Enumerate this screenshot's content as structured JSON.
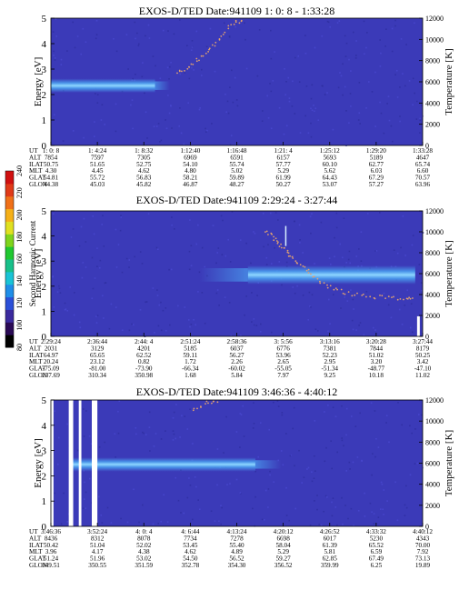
{
  "colorbar": {
    "label": "Second Harmonic Current",
    "ticks": [
      "80",
      "100",
      "120",
      "140",
      "160",
      "180",
      "200",
      "220",
      "240"
    ],
    "colors": [
      "#000000",
      "#2a0a55",
      "#3b2a9e",
      "#2b4fd8",
      "#1f8ee8",
      "#19c3d6",
      "#18c08a",
      "#20c830",
      "#7fd41c",
      "#e0e020",
      "#f5b018",
      "#f07018",
      "#e03a18",
      "#d01010"
    ]
  },
  "background_color": "#3b3ab8",
  "band_color": "#4aa0f0",
  "band_core_color": "#8fd8ff",
  "scatter_color": "#e0a070",
  "chart_data": [
    {
      "type": "heatmap",
      "title": "EXOS-D/TED   Date:941109   1: 0: 8 - 1:33:28",
      "ylabel": "Energy [eV]",
      "y2label": "Temperature [K]",
      "ylim": [
        0,
        5
      ],
      "y_ticks": [
        "0",
        "1",
        "2",
        "3",
        "4",
        "5"
      ],
      "y2lim": [
        0,
        12000
      ],
      "y2_ticks": [
        "0",
        "2000",
        "4000",
        "6000",
        "8000",
        "10000",
        "12000"
      ],
      "band": {
        "energy_center": 2.35,
        "energy_width": 0.55,
        "time_range": [
          0.0,
          0.28
        ],
        "fade_range": [
          0.28,
          0.32
        ]
      },
      "temperature_trace": [
        [
          0.34,
          2.8
        ],
        [
          0.37,
          3.05
        ],
        [
          0.4,
          3.4
        ],
        [
          0.43,
          3.8
        ],
        [
          0.46,
          4.3
        ],
        [
          0.49,
          4.8
        ],
        [
          0.52,
          4.95
        ]
      ],
      "ephemeris": {
        "labels": [
          "UT",
          "ALT",
          "ILAT",
          "MLT",
          "GLAT",
          "GLON"
        ],
        "columns": [
          [
            "1: 0: 8",
            "7854",
            "50.75",
            "4.30",
            "54.81",
            "44.38"
          ],
          [
            "1: 4:24",
            "7597",
            "51.65",
            "4.45",
            "55.72",
            "45.03"
          ],
          [
            "1: 8:32",
            "7305",
            "52.75",
            "4.62",
            "56.83",
            "45.82"
          ],
          [
            "1:12:40",
            "6969",
            "54.10",
            "4.80",
            "58.21",
            "46.87"
          ],
          [
            "1:16:48",
            "6591",
            "55.74",
            "5.02",
            "59.89",
            "48.27"
          ],
          [
            "1:21: 4",
            "6157",
            "57.77",
            "5.29",
            "61.99",
            "50.27"
          ],
          [
            "1:25:12",
            "5693",
            "60.10",
            "5.62",
            "64.43",
            "53.07"
          ],
          [
            "1:29:20",
            "5189",
            "62.77",
            "6.03",
            "67.29",
            "57.27"
          ],
          [
            "1:33:28",
            "4647",
            "65.74",
            "6.60",
            "70.57",
            "63.96"
          ]
        ]
      }
    },
    {
      "type": "heatmap",
      "title": "EXOS-D/TED   Date:941109   2:29:24 - 3:27:44",
      "ylabel": "Energy [eV]",
      "y2label": "Temperature [K]",
      "ylim": [
        0,
        5
      ],
      "y_ticks": [
        "0",
        "1",
        "2",
        "3",
        "4",
        "5"
      ],
      "y2lim": [
        0,
        12000
      ],
      "y2_ticks": [
        "0",
        "2000",
        "4000",
        "6000",
        "8000",
        "10000",
        "12000"
      ],
      "band": {
        "energy_center": 2.45,
        "energy_width": 0.75,
        "time_range": [
          0.53,
          0.98
        ],
        "fade_range": [
          0.4,
          0.53
        ]
      },
      "temperature_trace": [
        [
          0.58,
          4.2
        ],
        [
          0.6,
          3.9
        ],
        [
          0.62,
          3.6
        ],
        [
          0.64,
          3.3
        ],
        [
          0.66,
          3.0
        ],
        [
          0.69,
          2.6
        ],
        [
          0.72,
          2.2
        ],
        [
          0.76,
          1.9
        ],
        [
          0.8,
          1.7
        ],
        [
          0.85,
          1.6
        ],
        [
          0.9,
          1.55
        ],
        [
          0.95,
          1.5
        ],
        [
          0.98,
          1.5
        ]
      ],
      "ephemeris": {
        "labels": [
          "UT",
          "ALT",
          "ILAT",
          "MLT",
          "GLAT",
          "GLON"
        ],
        "columns": [
          [
            "2:29:24",
            "2031",
            "64.97",
            "20.24",
            "-75.09",
            "237.69"
          ],
          [
            "2:36:44",
            "3129",
            "65.65",
            "23.12",
            "-81.00",
            "310.34"
          ],
          [
            "2:44: 4",
            "4201",
            "62.52",
            "0.82",
            "-73.90",
            "350.98"
          ],
          [
            "2:51:24",
            "5185",
            "59.11",
            "1.72",
            "-66.34",
            "1.68"
          ],
          [
            "2:58:36",
            "6037",
            "56.27",
            "2.26",
            "-60.02",
            "5.84"
          ],
          [
            "3: 5:56",
            "6776",
            "53.96",
            "2.65",
            "-55.05",
            "7.97"
          ],
          [
            "3:13:16",
            "7381",
            "52.23",
            "2.95",
            "-51.34",
            "9.25"
          ],
          [
            "3:20:28",
            "7844",
            "51.02",
            "3.20",
            "-48.77",
            "10.18"
          ],
          [
            "3:27:44",
            "8179",
            "50.25",
            "3.42",
            "-47.10",
            "11.02"
          ]
        ]
      }
    },
    {
      "type": "heatmap",
      "title": "EXOS-D/TED   Date:941109   3:46:36 - 4:40:12",
      "ylabel": "Energy [eV]",
      "y2label": "Temperature [K]",
      "ylim": [
        0,
        5
      ],
      "y_ticks": [
        "0",
        "1",
        "2",
        "3",
        "4",
        "5"
      ],
      "y2lim": [
        0,
        12000
      ],
      "y2_ticks": [
        "0",
        "2000",
        "4000",
        "6000",
        "8000",
        "10000",
        "12000"
      ],
      "band": {
        "energy_center": 2.45,
        "energy_width": 0.55,
        "time_range": [
          0.05,
          0.55
        ],
        "fade_range": [
          0.55,
          0.62
        ]
      },
      "temperature_trace": [
        [
          0.38,
          4.6
        ],
        [
          0.42,
          4.9
        ],
        [
          0.45,
          5.0
        ]
      ],
      "ephemeris": {
        "labels": [
          "UT",
          "ALT",
          "ILAT",
          "MLT",
          "GLAT",
          "GLON"
        ],
        "columns": [
          [
            "3:46:36",
            "8436",
            "50.42",
            "3.96",
            "51.24",
            "349.51"
          ],
          [
            "3:52:24",
            "8312",
            "51.04",
            "4.17",
            "51.96",
            "350.55"
          ],
          [
            "4: 0: 4",
            "8078",
            "52.02",
            "4.38",
            "53.02",
            "351.59"
          ],
          [
            "4: 6:44",
            "7734",
            "53.45",
            "4.62",
            "54.50",
            "352.78"
          ],
          [
            "4:13:24",
            "7278",
            "55.40",
            "4.89",
            "56.52",
            "354.30"
          ],
          [
            "4:20:12",
            "6698",
            "58.04",
            "5.29",
            "59.27",
            "356.52"
          ],
          [
            "4:26:52",
            "6017",
            "61.39",
            "5.81",
            "62.85",
            "359.99"
          ],
          [
            "4:33:32",
            "5230",
            "65.52",
            "6.59",
            "67.49",
            "6.25"
          ],
          [
            "4:40:12",
            "4343",
            "70.00",
            "7.92",
            "73.13",
            "19.89"
          ]
        ]
      }
    }
  ]
}
